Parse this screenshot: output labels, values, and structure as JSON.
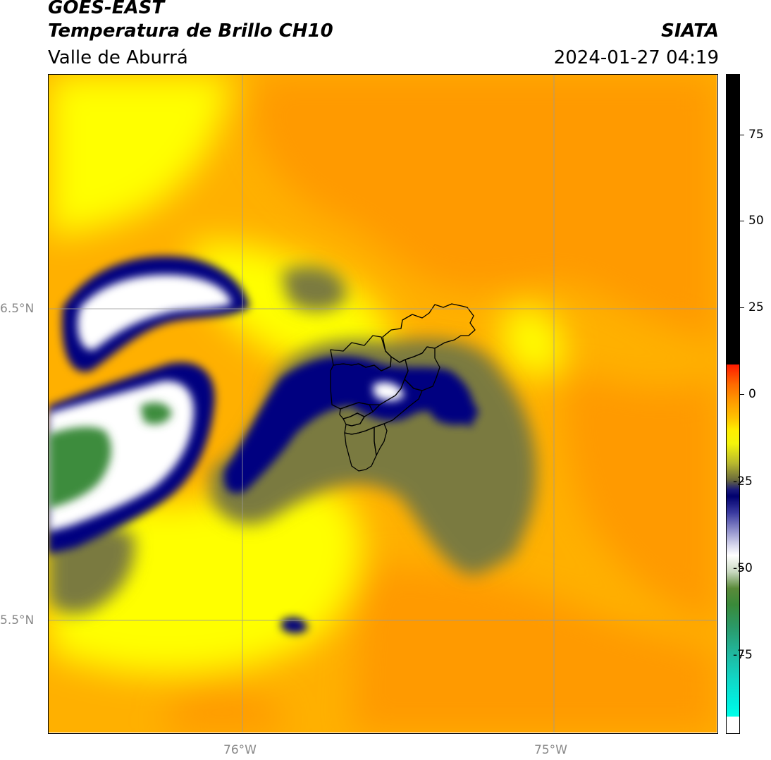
{
  "header": {
    "satellite": "GOES-EAST",
    "product": "Temperatura de Brillo CH10",
    "region": "Valle de Aburrá",
    "agency": "SIATA",
    "timestamp": "2024-01-27 04:19"
  },
  "map": {
    "lat_labels": [
      "6.5°N",
      "5.5°N"
    ],
    "lon_labels": [
      "76°W",
      "75°W"
    ],
    "colors": {
      "warm_background": "#ffb000",
      "warm_orange": "#ff9a00",
      "yellow": "#ffff00",
      "olive": "#7a7a40",
      "deep_cloud": "#000080",
      "cold_white": "#ffffff",
      "cold_green": "#3c8c3c",
      "gridline": "#9a9a9a"
    }
  },
  "colorbar": {
    "ticks": [
      "75",
      "50",
      "25",
      "0",
      "-25",
      "-50",
      "-75"
    ]
  }
}
